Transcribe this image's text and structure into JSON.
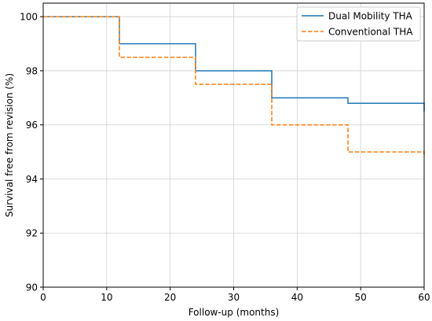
{
  "chart_data": {
    "type": "line",
    "title": "",
    "xlabel": "Follow-up (months)",
    "ylabel": "Survival free from revision (%)",
    "xlim": [
      0,
      60
    ],
    "ylim": [
      90,
      100.5
    ],
    "xticks": [
      0,
      10,
      20,
      30,
      40,
      50,
      60
    ],
    "yticks": [
      90,
      92,
      94,
      96,
      98,
      100
    ],
    "grid": true,
    "legend_position": "top-right",
    "series": [
      {
        "name": "Dual Mobility THA",
        "color": "#1f77b4",
        "line_style": "solid",
        "step": "post",
        "x": [
          0,
          12,
          24,
          36,
          48,
          60
        ],
        "y": [
          100,
          99,
          98,
          97,
          96.8,
          96.5
        ]
      },
      {
        "name": "Conventional THA",
        "color": "#ff7f0e",
        "line_style": "dashed",
        "step": "post",
        "x": [
          0,
          12,
          24,
          36,
          48,
          60
        ],
        "y": [
          100,
          98.5,
          97.5,
          96,
          95,
          94.8
        ]
      }
    ]
  }
}
